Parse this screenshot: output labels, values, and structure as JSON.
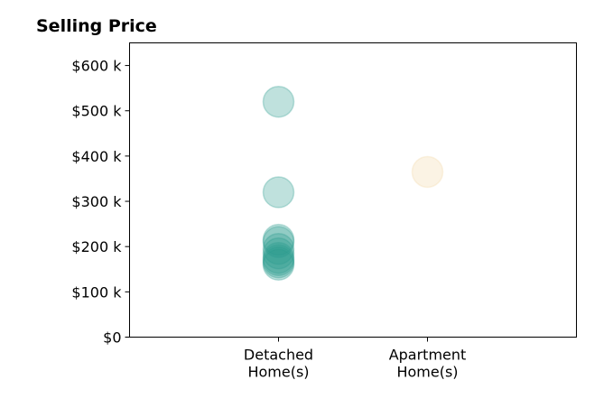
{
  "chart_data": {
    "type": "scatter",
    "title": "Selling Price",
    "xlabel": "",
    "ylabel": "",
    "categories": [
      [
        "Detached",
        "Home(s)"
      ],
      [
        "Apartment",
        "Home(s)"
      ]
    ],
    "x_range": [
      -1,
      2
    ],
    "ylim": [
      0,
      650000
    ],
    "y_ticks": [
      0,
      100000,
      200000,
      300000,
      400000,
      500000,
      600000
    ],
    "y_tick_labels": [
      "$0",
      "$100 k",
      "$200 k",
      "$300 k",
      "$400 k",
      "$500 k",
      "$600 k"
    ],
    "grid": false,
    "series": [
      {
        "category_index": 0,
        "color": "#2a9d8f",
        "values": [
          520000,
          320000,
          215000,
          210000,
          195000,
          185000,
          175000,
          170000,
          165000,
          160000
        ]
      },
      {
        "category_index": 1,
        "color": "#f2d8a7",
        "values": [
          365000
        ]
      }
    ]
  }
}
